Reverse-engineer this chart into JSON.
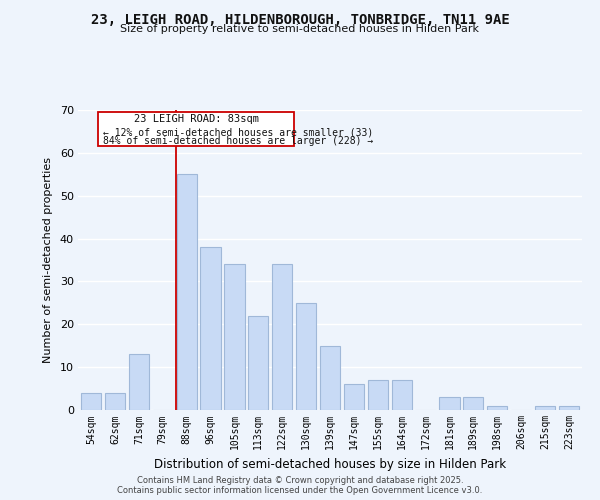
{
  "title_line1": "23, LEIGH ROAD, HILDENBOROUGH, TONBRIDGE, TN11 9AE",
  "title_line2": "Size of property relative to semi-detached houses in Hilden Park",
  "xlabel": "Distribution of semi-detached houses by size in Hilden Park",
  "ylabel": "Number of semi-detached properties",
  "categories": [
    "54sqm",
    "62sqm",
    "71sqm",
    "79sqm",
    "88sqm",
    "96sqm",
    "105sqm",
    "113sqm",
    "122sqm",
    "130sqm",
    "139sqm",
    "147sqm",
    "155sqm",
    "164sqm",
    "172sqm",
    "181sqm",
    "189sqm",
    "198sqm",
    "206sqm",
    "215sqm",
    "223sqm"
  ],
  "values": [
    4,
    4,
    13,
    0,
    55,
    38,
    34,
    22,
    34,
    25,
    15,
    6,
    7,
    7,
    0,
    3,
    3,
    1,
    0,
    1,
    1
  ],
  "bar_color": "#c8daf5",
  "bar_edge_color": "#a0b8d8",
  "ylim": [
    0,
    70
  ],
  "yticks": [
    0,
    10,
    20,
    30,
    40,
    50,
    60,
    70
  ],
  "annotation_line1": "23 LEIGH ROAD: 83sqm",
  "annotation_line2": "← 12% of semi-detached houses are smaller (33)",
  "annotation_line3": "84% of semi-detached houses are larger (228) →",
  "vline_color": "#cc0000",
  "footer_line1": "Contains HM Land Registry data © Crown copyright and database right 2025.",
  "footer_line2": "Contains public sector information licensed under the Open Government Licence v3.0.",
  "background_color": "#eef4fc",
  "grid_color": "#ffffff"
}
